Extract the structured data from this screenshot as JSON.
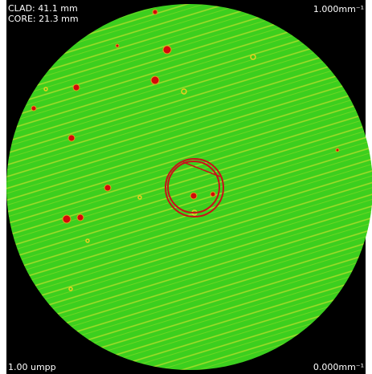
{
  "overlay": {
    "clad": "CLAD: 41.1 mm",
    "core": "CORE: 21.3 mm",
    "scale_top": "1.000mm⁻¹",
    "resolution": "1.00 umpp",
    "scale_bottom": "0.000mm⁻¹"
  }
}
